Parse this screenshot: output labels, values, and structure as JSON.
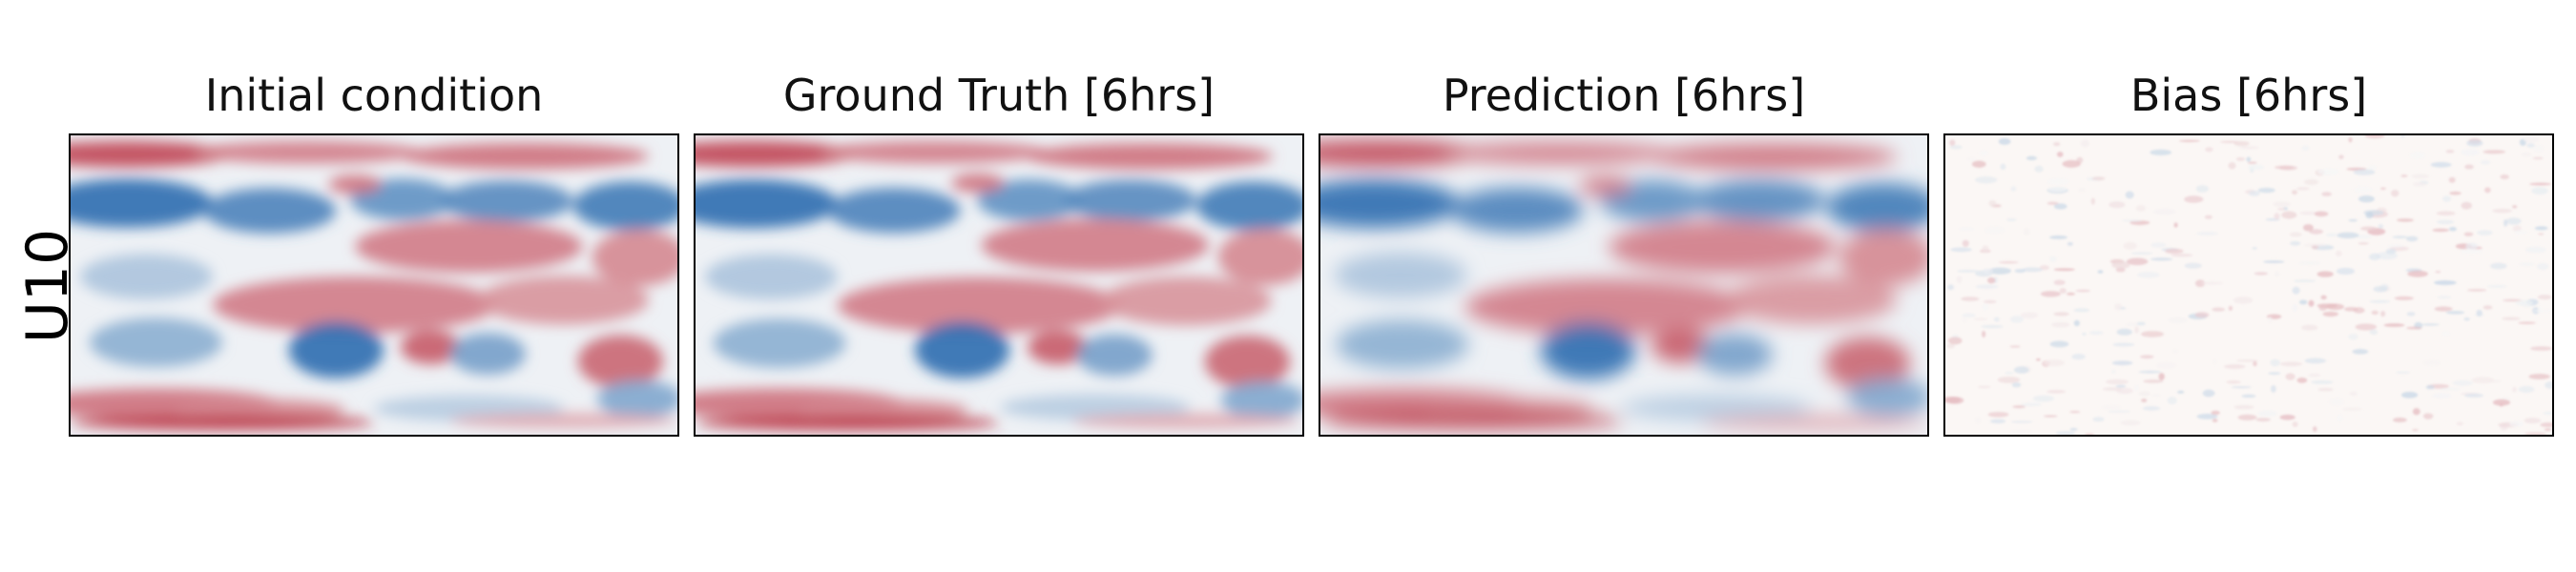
{
  "figure": {
    "row_label": "U10",
    "panels": [
      {
        "title": "Initial condition",
        "image": "u10-field-map",
        "style": "field"
      },
      {
        "title": "Ground Truth [6hrs]",
        "image": "u10-field-map",
        "style": "field"
      },
      {
        "title": "Prediction [6hrs]",
        "image": "u10-field-map",
        "style": "field-smooth"
      },
      {
        "title": "Bias [6hrs]",
        "image": "u10-bias-map",
        "style": "bias"
      }
    ],
    "colormap": {
      "negative": "#2166ac",
      "neutral": "#f7f7f7",
      "positive": "#b2182b"
    }
  }
}
